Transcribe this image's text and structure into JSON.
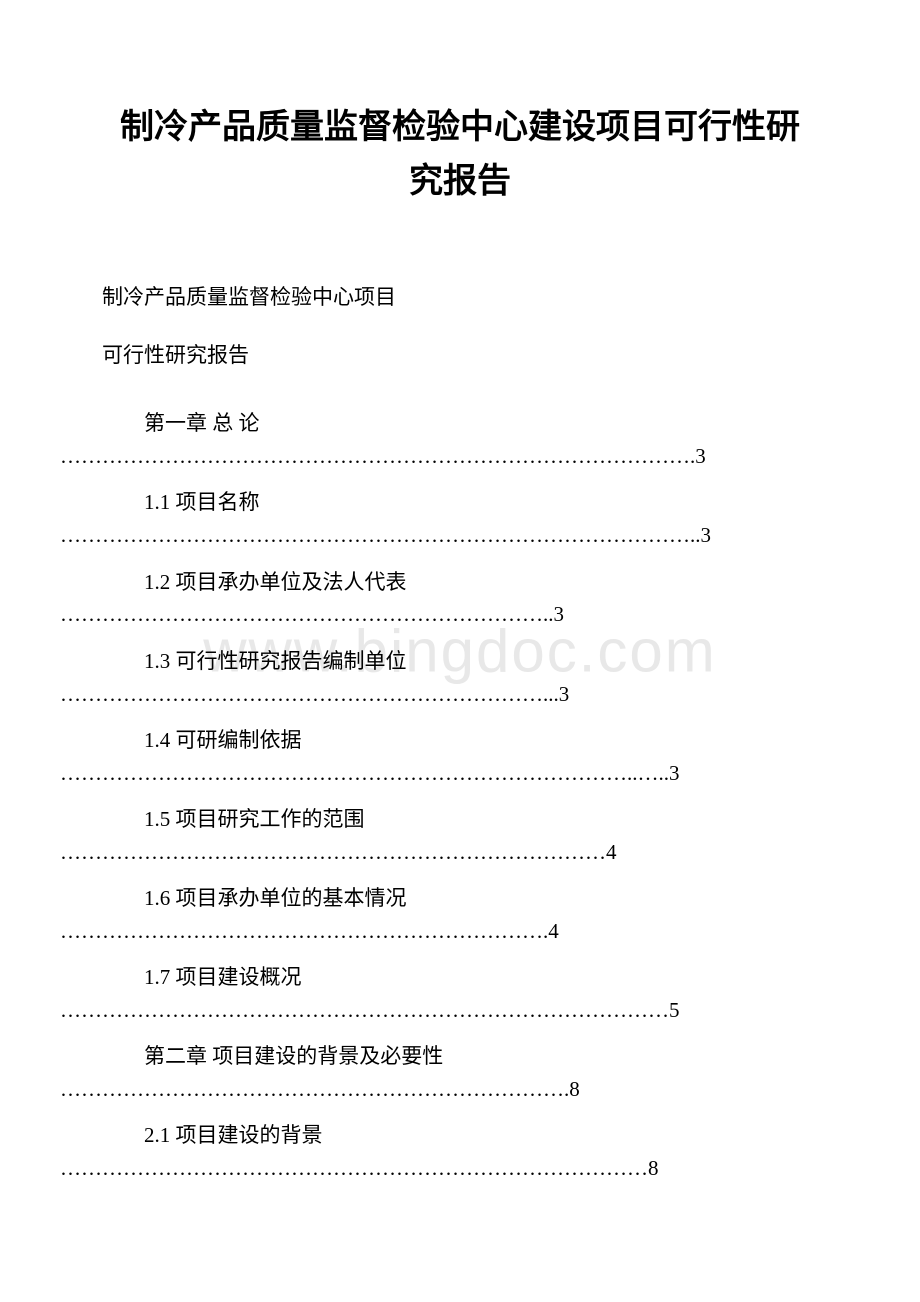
{
  "title_line1": "制冷产品质量监督检验中心建设项目可行性研",
  "title_line2": "究报告",
  "subtitle1": "制冷产品质量监督检验中心项目",
  "subtitle2": "可行性研究报告",
  "watermark": "www.bingdoc.com",
  "toc": [
    {
      "label": "第一章 总 论",
      "dots": "……………………………………………………………………………….3"
    },
    {
      "label": "1.1 项目名称",
      "dots": "………………………………………………………………………………..3"
    },
    {
      "label": "1.2 项目承办单位及法人代表",
      "dots": "……………………………………………………………..3"
    },
    {
      "label": "1.3 可行性研究报告编制单位",
      "dots": "……………………………………………………………...3"
    },
    {
      "label": "1.4 可研编制依据",
      "dots": "………………………………………………………………………..…..3"
    },
    {
      "label": "1.5 项目研究工作的范围",
      "dots": "……………………………………………………………………4"
    },
    {
      "label": "1.6 项目承办单位的基本情况",
      "dots": "…………………………………………………………….4"
    },
    {
      "label": "1.7 项目建设概况",
      "dots": "……………………………………………………………………………5"
    },
    {
      "label": "第二章 项目建设的背景及必要性",
      "dots": "……………………………………………………………….8"
    },
    {
      "label": "2.1 项目建设的背景",
      "dots": "…………………………………………………………………………8"
    }
  ]
}
